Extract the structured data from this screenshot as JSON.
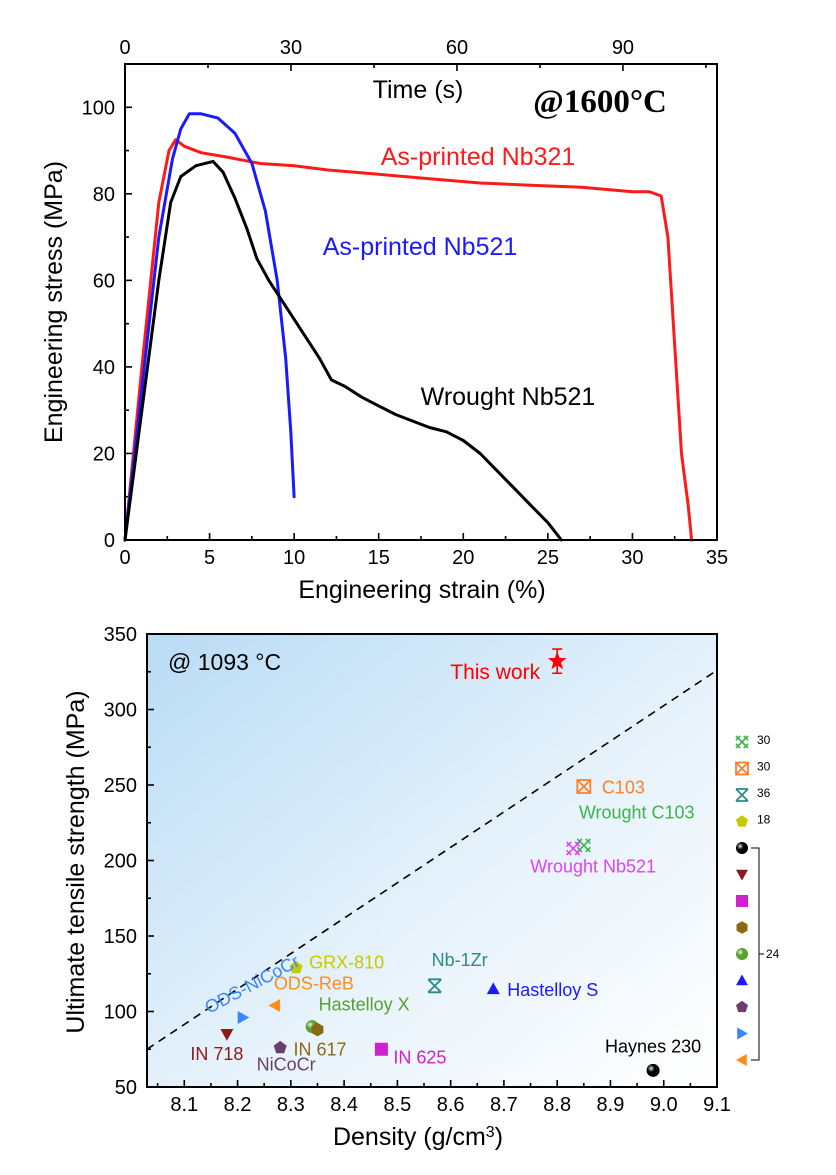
{
  "chart_data": [
    {
      "type": "line",
      "annotation": "@1600°C",
      "xlabel": "Engineering strain (%)",
      "ylabel": "Engineering stress (MPa)",
      "x2label": "Time (s)",
      "xlim": [
        0,
        35
      ],
      "ylim": [
        0,
        110
      ],
      "x2lim": [
        0,
        107
      ],
      "xticks": [
        "0",
        "5",
        "10",
        "15",
        "20",
        "25",
        "30",
        "35"
      ],
      "yticks": [
        "0",
        "20",
        "40",
        "60",
        "80",
        "100"
      ],
      "x2ticks": [
        "0",
        "30",
        "60",
        "90"
      ],
      "series": [
        {
          "name": "As-printed Nb321",
          "color": "#ff1a1a",
          "points": [
            [
              0,
              0
            ],
            [
              1,
              40
            ],
            [
              2,
              78
            ],
            [
              2.6,
              90
            ],
            [
              3,
              92.5
            ],
            [
              3.5,
              91
            ],
            [
              4.5,
              89.5
            ],
            [
              6,
              88.5
            ],
            [
              8,
              87
            ],
            [
              10,
              86.5
            ],
            [
              12,
              85.5
            ],
            [
              15,
              84.5
            ],
            [
              18,
              83.5
            ],
            [
              21,
              82.5
            ],
            [
              24,
              82
            ],
            [
              27,
              81.5
            ],
            [
              30,
              80.5
            ],
            [
              31,
              80.5
            ],
            [
              31.7,
              79.5
            ],
            [
              32.1,
              70
            ],
            [
              32.5,
              45
            ],
            [
              32.9,
              20
            ],
            [
              33.3,
              8
            ],
            [
              33.5,
              0
            ]
          ]
        },
        {
          "name": "As-printed Nb521",
          "color": "#1a1aff",
          "points": [
            [
              0,
              0
            ],
            [
              1,
              35
            ],
            [
              2,
              70
            ],
            [
              2.8,
              88
            ],
            [
              3.3,
              95
            ],
            [
              3.8,
              98.5
            ],
            [
              4.5,
              98.5
            ],
            [
              5.5,
              97.5
            ],
            [
              6.5,
              94
            ],
            [
              7.5,
              87
            ],
            [
              8.3,
              76
            ],
            [
              9,
              60
            ],
            [
              9.5,
              42
            ],
            [
              9.8,
              25
            ],
            [
              10,
              10
            ]
          ]
        },
        {
          "name": "Wrought Nb521",
          "color": "#000000",
          "points": [
            [
              0,
              0
            ],
            [
              1,
              30
            ],
            [
              2,
              60
            ],
            [
              2.7,
              78
            ],
            [
              3.3,
              84
            ],
            [
              4.2,
              86.5
            ],
            [
              5.2,
              87.5
            ],
            [
              5.8,
              85
            ],
            [
              6.5,
              79
            ],
            [
              7.2,
              72
            ],
            [
              7.8,
              65
            ],
            [
              8.5,
              60
            ],
            [
              9.5,
              54
            ],
            [
              10.5,
              48
            ],
            [
              11.5,
              42
            ],
            [
              12.2,
              37
            ],
            [
              13,
              35.5
            ],
            [
              14,
              33
            ],
            [
              15,
              31
            ],
            [
              16,
              29
            ],
            [
              17,
              27.5
            ],
            [
              18,
              26
            ],
            [
              19,
              25
            ],
            [
              20,
              23
            ],
            [
              21,
              20
            ],
            [
              22,
              16
            ],
            [
              23,
              12
            ],
            [
              24,
              8
            ],
            [
              25,
              4
            ],
            [
              25.8,
              0
            ]
          ]
        }
      ]
    },
    {
      "type": "scatter",
      "annotation": "@ 1093 °C",
      "xlabel": "Density (g/cm³)",
      "ylabel": "Ultimate tensile strength (MPa)",
      "xlim": [
        8.03,
        9.1
      ],
      "ylim": [
        50,
        350
      ],
      "xticks": [
        "8.1",
        "8.2",
        "8.3",
        "8.4",
        "8.5",
        "8.6",
        "8.7",
        "8.8",
        "8.9",
        "9.0",
        "9.1"
      ],
      "yticks": [
        "50",
        "100",
        "150",
        "200",
        "250",
        "300",
        "350"
      ],
      "reference_line": {
        "style": "dashed",
        "from": [
          8.03,
          75
        ],
        "to": [
          9.1,
          326
        ]
      },
      "points": [
        {
          "label": "This work",
          "x": 8.8,
          "y": 332,
          "err": 8,
          "marker": "star",
          "color": "#ff0000"
        },
        {
          "label": "C103",
          "x": 8.85,
          "y": 249,
          "marker": "boxed-x",
          "color": "#ff7f27"
        },
        {
          "label": "Wrought C103",
          "x": 8.85,
          "y": 210,
          "marker": "hatched-x",
          "color": "#3cb44b"
        },
        {
          "label": "Wrought Nb521",
          "x": 8.83,
          "y": 208,
          "marker": "hatched-x",
          "color": "#e040fb"
        },
        {
          "label": "Nb-1Zr",
          "x": 8.57,
          "y": 117,
          "marker": "hourglass",
          "color": "#2a8a8a"
        },
        {
          "label": "Hastelloy S",
          "x": 8.68,
          "y": 115,
          "marker": "triangle-up",
          "color": "#1a1aff"
        },
        {
          "label": "GRX-810",
          "x": 8.31,
          "y": 129,
          "marker": "pentagon",
          "color": "#c8c800"
        },
        {
          "label": "ODS-ReB",
          "x": 8.27,
          "y": 104,
          "marker": "triangle-left",
          "color": "#ff8c1a"
        },
        {
          "label": "ODS-NiCoCr",
          "x": 8.21,
          "y": 96,
          "marker": "triangle-right",
          "color": "#3a86ff"
        },
        {
          "label": "Hastelloy X",
          "x": 8.34,
          "y": 90,
          "marker": "sphere",
          "color": "#5aa02c"
        },
        {
          "label": "IN 617",
          "x": 8.35,
          "y": 88,
          "marker": "hexagon",
          "color": "#8b6914"
        },
        {
          "label": "IN 718",
          "x": 8.18,
          "y": 85,
          "marker": "triangle-down",
          "color": "#8b1a1a"
        },
        {
          "label": "NiCoCr",
          "x": 8.28,
          "y": 76,
          "marker": "pentagon",
          "color": "#6b3f6b"
        },
        {
          "label": "IN 625",
          "x": 8.47,
          "y": 75,
          "marker": "square",
          "color": "#d020d0"
        },
        {
          "label": "Haynes 230",
          "x": 8.98,
          "y": 61,
          "marker": "sphere",
          "color": "#000000"
        }
      ],
      "legend": {
        "placement": "right",
        "entries": [
          {
            "marker": "hatched-x",
            "color": "#3cb44b",
            "ref": "30"
          },
          {
            "marker": "boxed-x",
            "color": "#ff7f27",
            "ref": "30"
          },
          {
            "marker": "hourglass",
            "color": "#2a8a8a",
            "ref": "36"
          },
          {
            "marker": "pentagon",
            "color": "#c8c800",
            "ref": "18"
          },
          {
            "marker": "sphere",
            "color": "#000000",
            "ref": ""
          },
          {
            "marker": "triangle-down",
            "color": "#8b1a1a",
            "ref": ""
          },
          {
            "marker": "square",
            "color": "#d020d0",
            "ref": ""
          },
          {
            "marker": "hexagon",
            "color": "#8b6914",
            "ref": ""
          },
          {
            "marker": "sphere",
            "color": "#5aa02c",
            "ref": ""
          },
          {
            "marker": "triangle-up",
            "color": "#1a1aff",
            "ref": ""
          },
          {
            "marker": "pentagon",
            "color": "#6b3f6b",
            "ref": ""
          },
          {
            "marker": "triangle-right",
            "color": "#3a86ff",
            "ref": ""
          },
          {
            "marker": "triangle-left",
            "color": "#ff8c1a",
            "ref": ""
          }
        ],
        "group_ref": "24"
      }
    }
  ]
}
